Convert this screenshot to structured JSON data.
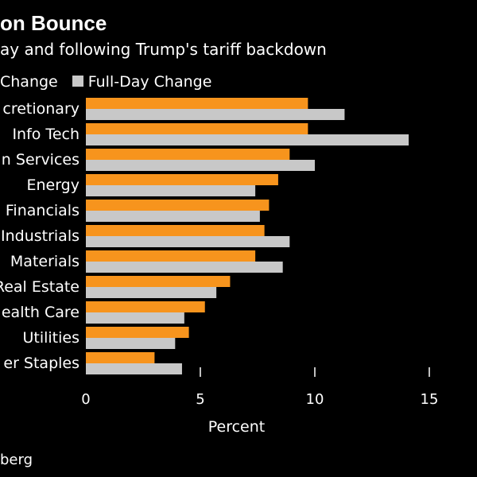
{
  "header": {
    "title": "on Bounce",
    "subtitle": "ay and following Trump's tariff backdown"
  },
  "legend": {
    "items": [
      {
        "label": "Change",
        "color": "#f7941d"
      },
      {
        "label": "Full-Day Change",
        "color": "#c8c8c8"
      }
    ]
  },
  "footer": {
    "source": "berg"
  },
  "chart_data": {
    "type": "bar",
    "orientation": "horizontal",
    "categories": [
      "cretionary",
      "Info Tech",
      "n Services",
      "Energy",
      "Financials",
      "Industrials",
      "Materials",
      "Real Estate",
      "ealth Care",
      "Utilities",
      "er Staples"
    ],
    "series": [
      {
        "name": "Change",
        "color": "#f7941d",
        "values": [
          9.7,
          9.7,
          8.9,
          8.4,
          8.0,
          7.8,
          7.4,
          6.3,
          5.2,
          4.5,
          3.0
        ]
      },
      {
        "name": "Full-Day Change",
        "color": "#c8c8c8",
        "values": [
          11.3,
          14.1,
          10.0,
          7.4,
          7.6,
          8.9,
          8.6,
          5.7,
          4.3,
          3.9,
          4.2
        ]
      }
    ],
    "xlabel": "Percent",
    "xlim": [
      0,
      15
    ],
    "xticks": [
      0,
      5,
      10,
      15
    ],
    "grid": false,
    "legend_position": "top"
  }
}
